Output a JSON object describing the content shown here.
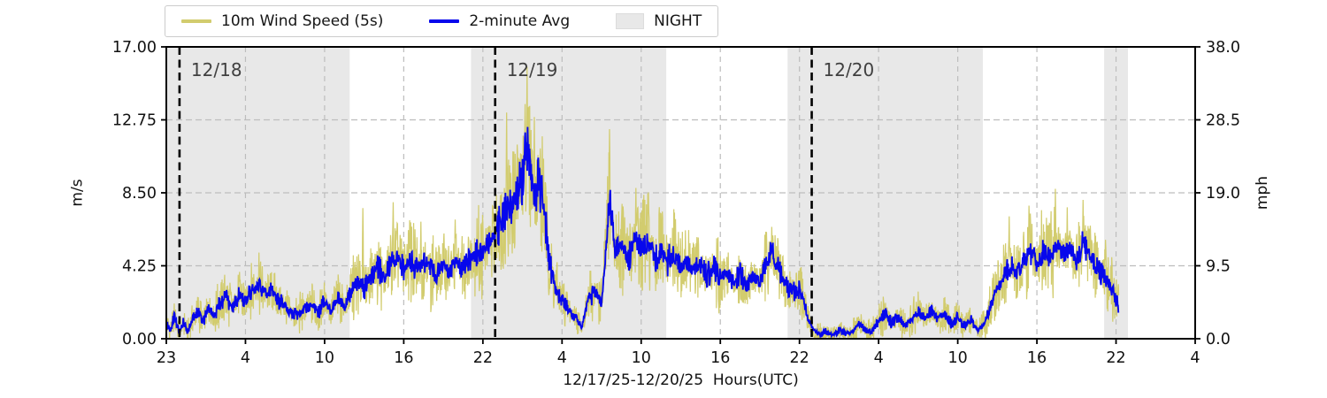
{
  "chart": {
    "legend": {
      "items": [
        {
          "label": "10m Wind Speed (5s)",
          "type": "line",
          "color": "#d2cc6e"
        },
        {
          "label": "2-minute Avg",
          "type": "line",
          "color": "#0707ec"
        },
        {
          "label": "NIGHT",
          "type": "patch",
          "color": "#e8e8e8"
        }
      ]
    },
    "xlabel": "12/17/25-12/20/25  Hours(UTC)",
    "ylabel_left": "m/s",
    "ylabel_right": "mph"
  },
  "chart_data": {
    "type": "line",
    "title": "",
    "xlabel": "12/17/25-12/20/25  Hours(UTC)",
    "ylabel_left": "m/s",
    "ylabel_right": "mph",
    "x_unit": "hours from plot left edge (first tick = 23:00 UTC 12/17/25)",
    "xlim": [
      0,
      78
    ],
    "ylim_ms": [
      0,
      17
    ],
    "ylim_mph": [
      0,
      38
    ],
    "grid": true,
    "legend_position": "upper-left-outside",
    "x_tick_hours": [
      0,
      6,
      12,
      18,
      24,
      30,
      36,
      42,
      48,
      54,
      60,
      66,
      72,
      78
    ],
    "x_tick_labels": [
      "23",
      "4",
      "10",
      "16",
      "22",
      "4",
      "10",
      "16",
      "22",
      "4",
      "10",
      "16",
      "22",
      "4"
    ],
    "y_ticks_left": {
      "values": [
        0,
        4.25,
        8.5,
        12.75,
        17
      ],
      "labels": [
        "0.00",
        "4.25",
        "8.50",
        "12.75",
        "17.00"
      ]
    },
    "y_ticks_right": {
      "values": [
        0,
        9.5,
        19,
        28.5,
        38
      ],
      "labels": [
        "0.0",
        "9.5",
        "19.0",
        "28.5",
        "38.0"
      ]
    },
    "night_regions_hours": [
      [
        0,
        13.9
      ],
      [
        23.1,
        37.9
      ],
      [
        47.1,
        61.9
      ],
      [
        71.1,
        72.9
      ]
    ],
    "day_lines": [
      {
        "hour": 1.0,
        "label": "12/18"
      },
      {
        "hour": 24.93,
        "label": "12/19"
      },
      {
        "hour": 48.93,
        "label": "12/20"
      }
    ],
    "colors": {
      "night": "#e8e8e8",
      "grid": "#bdbdbd",
      "day_line": "#000000",
      "day_label": "#404040",
      "raw_series": "#d2cc6e",
      "avg_series": "#0707ec",
      "spine": "#000000"
    },
    "series": [
      {
        "name": "10m Wind Speed (5s)",
        "color": "#d2cc6e",
        "style": "raw 5-second samples, rendered as noisy envelope around the 2-minute average",
        "envelope": {
          "base": 0.5,
          "factor": 0.34
        }
      },
      {
        "name": "2-minute Avg",
        "color": "#0707ec",
        "points": [
          [
            0,
            1.0
          ],
          [
            0.3,
            0.4
          ],
          [
            0.6,
            1.3
          ],
          [
            1.0,
            0.3
          ],
          [
            1.3,
            1.0
          ],
          [
            1.6,
            0.4
          ],
          [
            2,
            1.2
          ],
          [
            2.4,
            1.6
          ],
          [
            2.8,
            1.0
          ],
          [
            3.2,
            1.8
          ],
          [
            3.6,
            1.3
          ],
          [
            4,
            2.0
          ],
          [
            4.5,
            2.4
          ],
          [
            5,
            1.8
          ],
          [
            5.5,
            2.6
          ],
          [
            6,
            2.1
          ],
          [
            6.5,
            2.9
          ],
          [
            7,
            3.1
          ],
          [
            7.5,
            2.6
          ],
          [
            8,
            2.9
          ],
          [
            8.5,
            2.2
          ],
          [
            9,
            1.9
          ],
          [
            9.5,
            1.5
          ],
          [
            10,
            1.4
          ],
          [
            10.5,
            1.7
          ],
          [
            11,
            2.1
          ],
          [
            11.5,
            1.5
          ],
          [
            12,
            2.2
          ],
          [
            12.5,
            1.6
          ],
          [
            13,
            2.4
          ],
          [
            13.5,
            1.9
          ],
          [
            14,
            2.7
          ],
          [
            14.5,
            3.3
          ],
          [
            15,
            2.9
          ],
          [
            15.5,
            3.7
          ],
          [
            16,
            4.2
          ],
          [
            16.5,
            3.5
          ],
          [
            17,
            4.4
          ],
          [
            17.5,
            4.8
          ],
          [
            18,
            4.1
          ],
          [
            18.5,
            4.6
          ],
          [
            19,
            3.9
          ],
          [
            19.5,
            4.5
          ],
          [
            20,
            4.1
          ],
          [
            20.5,
            3.7
          ],
          [
            21,
            4.3
          ],
          [
            21.5,
            3.9
          ],
          [
            22,
            4.6
          ],
          [
            22.5,
            4.1
          ],
          [
            23,
            4.7
          ],
          [
            23.5,
            5.1
          ],
          [
            24,
            4.9
          ],
          [
            24.5,
            5.6
          ],
          [
            25,
            6.3
          ],
          [
            25.5,
            7.0
          ],
          [
            26,
            7.6
          ],
          [
            26.5,
            8.2
          ],
          [
            27,
            9.4
          ],
          [
            27.3,
            11.4
          ],
          [
            27.6,
            9.9
          ],
          [
            28,
            8.6
          ],
          [
            28.3,
            9.1
          ],
          [
            28.7,
            7.2
          ],
          [
            29,
            4.6
          ],
          [
            29.5,
            2.9
          ],
          [
            30,
            2.3
          ],
          [
            30.5,
            1.7
          ],
          [
            31,
            1.3
          ],
          [
            31.5,
            0.7
          ],
          [
            32,
            2.3
          ],
          [
            32.5,
            2.7
          ],
          [
            33,
            2.1
          ],
          [
            33.4,
            5.8
          ],
          [
            33.6,
            8.3
          ],
          [
            34,
            5.1
          ],
          [
            34.5,
            5.6
          ],
          [
            35,
            4.6
          ],
          [
            35.5,
            5.9
          ],
          [
            36,
            5.2
          ],
          [
            36.5,
            5.7
          ],
          [
            37,
            4.7
          ],
          [
            37.5,
            5.1
          ],
          [
            38,
            4.5
          ],
          [
            38.5,
            4.9
          ],
          [
            39,
            4.1
          ],
          [
            39.5,
            4.5
          ],
          [
            40,
            3.9
          ],
          [
            40.5,
            4.3
          ],
          [
            41,
            3.7
          ],
          [
            41.5,
            4.1
          ],
          [
            42,
            3.5
          ],
          [
            42.5,
            3.9
          ],
          [
            43,
            3.3
          ],
          [
            43.5,
            3.7
          ],
          [
            44,
            3.1
          ],
          [
            44.5,
            3.6
          ],
          [
            45,
            3.3
          ],
          [
            45.5,
            4.3
          ],
          [
            46,
            5.1
          ],
          [
            46.5,
            3.9
          ],
          [
            47,
            3.1
          ],
          [
            47.5,
            2.7
          ],
          [
            48,
            2.9
          ],
          [
            48.5,
            1.6
          ],
          [
            49,
            0.5
          ],
          [
            49.5,
            0.2
          ],
          [
            50,
            0.4
          ],
          [
            50.5,
            0.2
          ],
          [
            51,
            0.5
          ],
          [
            51.5,
            0.3
          ],
          [
            52,
            0.4
          ],
          [
            52.5,
            0.9
          ],
          [
            53,
            0.5
          ],
          [
            53.5,
            0.4
          ],
          [
            54,
            1.1
          ],
          [
            54.5,
            1.5
          ],
          [
            55,
            0.9
          ],
          [
            55.5,
            1.3
          ],
          [
            56,
            0.7
          ],
          [
            56.5,
            1.1
          ],
          [
            57,
            1.6
          ],
          [
            57.5,
            1.2
          ],
          [
            58,
            1.7
          ],
          [
            58.5,
            1.1
          ],
          [
            59,
            1.5
          ],
          [
            59.5,
            0.9
          ],
          [
            60,
            1.3
          ],
          [
            60.5,
            0.7
          ],
          [
            61,
            1.1
          ],
          [
            61.5,
            0.5
          ],
          [
            62,
            0.9
          ],
          [
            62.5,
            1.9
          ],
          [
            63,
            2.9
          ],
          [
            63.5,
            3.6
          ],
          [
            64,
            4.3
          ],
          [
            64.5,
            3.7
          ],
          [
            65,
            4.6
          ],
          [
            65.5,
            5.1
          ],
          [
            66,
            4.3
          ],
          [
            66.5,
            5.2
          ],
          [
            67,
            4.7
          ],
          [
            67.5,
            5.5
          ],
          [
            68,
            4.9
          ],
          [
            68.5,
            5.3
          ],
          [
            69,
            4.6
          ],
          [
            69.5,
            5.7
          ],
          [
            70,
            4.9
          ],
          [
            70.5,
            4.3
          ],
          [
            71,
            3.7
          ],
          [
            71.5,
            3.1
          ],
          [
            72,
            2.4
          ],
          [
            72.2,
            1.9
          ]
        ]
      }
    ],
    "raw_spikes_ms": [
      [
        14.9,
        7.9
      ],
      [
        17.2,
        8.4
      ],
      [
        19.3,
        7.2
      ],
      [
        21.9,
        7.4
      ],
      [
        25.8,
        13.3
      ],
      [
        26.6,
        12.0
      ],
      [
        27.35,
        16.3
      ],
      [
        27.9,
        13.5
      ],
      [
        28.6,
        11.0
      ],
      [
        33.6,
        12.8
      ],
      [
        35.6,
        9.3
      ],
      [
        38.6,
        7.6
      ],
      [
        45.9,
        6.6
      ],
      [
        63.9,
        7.3
      ],
      [
        65.4,
        7.8
      ],
      [
        67.4,
        8.8
      ],
      [
        68.3,
        8.3
      ],
      [
        69.5,
        8.5
      ],
      [
        71.2,
        6.2
      ]
    ]
  }
}
